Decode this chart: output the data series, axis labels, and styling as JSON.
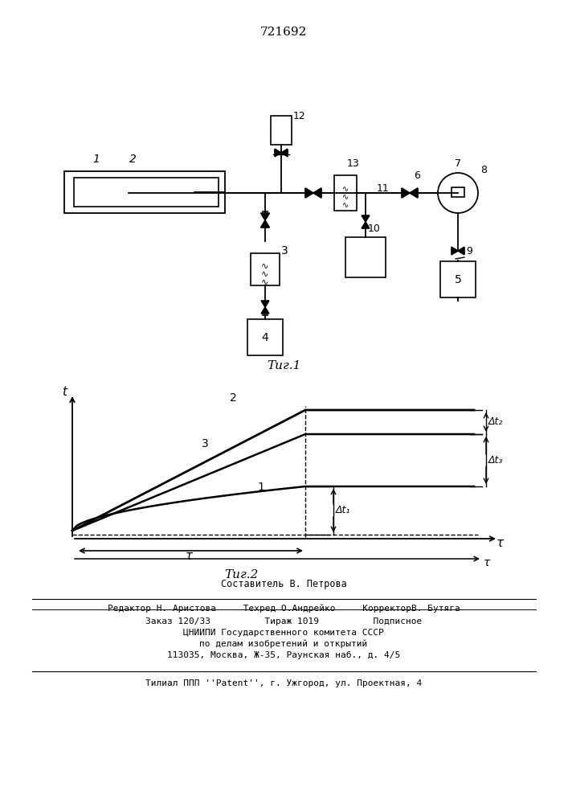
{
  "patent_number": "721692",
  "fig1_caption": "Τиг.1",
  "fig2_caption": "Τиг.2",
  "bg_color": "#ffffff",
  "line_color": "#000000",
  "text_color": "#000000",
  "footer_lines": [
    "Составитель В. Петрова",
    "Редактор Н. Аристова     Техред О.Андрейко     КорректорВ. Бутяга",
    "Заказ 120/33          Тираж 1019          Подписное",
    "ЦНИИПИ Государственного комитета СССР",
    "по делам изобретений и открытий",
    "113035, Москва, Ж-35, Раунская наб., д. 4/5",
    "Τилиал ППП ''Patent'', г. Ужгород, ул. Проектная, 4"
  ]
}
